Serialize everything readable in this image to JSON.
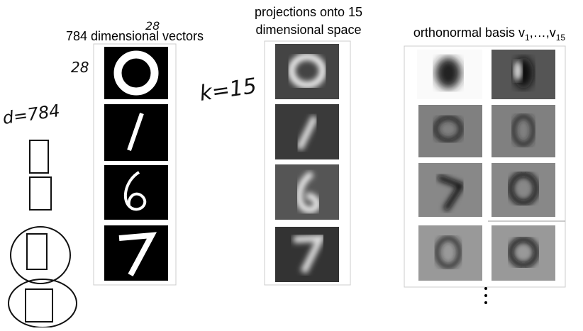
{
  "header": {
    "left": "784 dimensional vectors",
    "middle": [
      "projections onto 15",
      "dimensional space"
    ],
    "right": {
      "text": "orthonormal basis v",
      "sub1": "1",
      "mid": ",…,v",
      "sub2": "15"
    }
  },
  "annotations": {
    "size_top": "28",
    "size_left": "28",
    "d": "d=784",
    "k": "k=15"
  }
}
